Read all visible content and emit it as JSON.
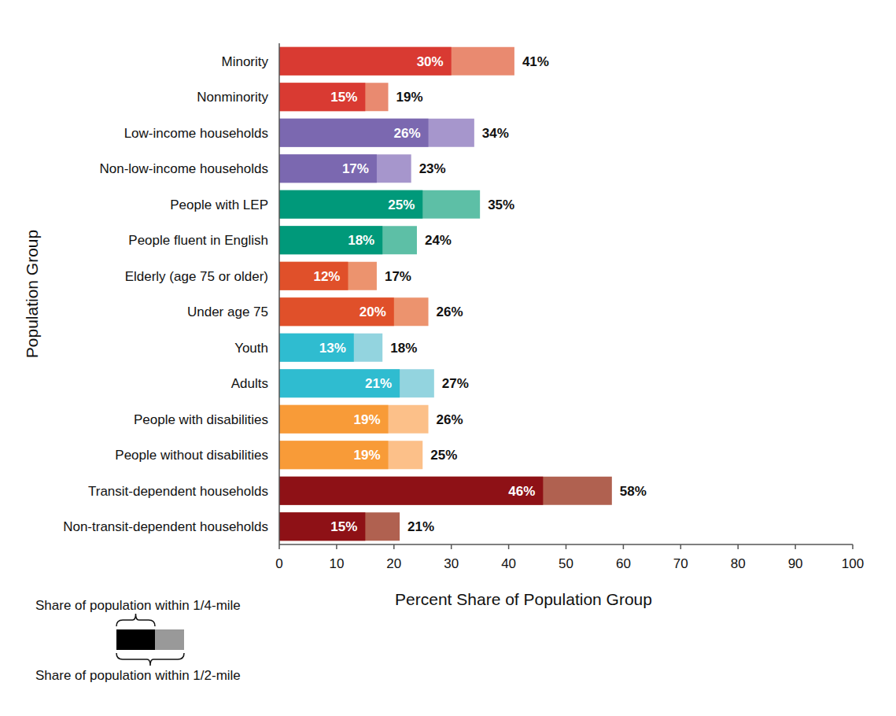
{
  "chart_data": {
    "type": "bar",
    "orientation": "horizontal",
    "stacked": false,
    "data_labels": true,
    "grid": false,
    "legend": "bottom-left",
    "xlabel": "Percent Share of Population Group",
    "ylabel": "Population Group",
    "categories": [
      "Minority",
      "Nonminority",
      "Low-income households",
      "Non-low-income households",
      "People with LEP",
      "People fluent in English",
      "Elderly (age 75 or older)",
      "Under age 75",
      "Youth",
      "Adults",
      "People with disabilities",
      "People without disabilities",
      "Transit-dependent households",
      "Non-transit-dependent households"
    ],
    "xlim": [
      0,
      100
    ],
    "xticks": [
      0,
      10,
      20,
      30,
      40,
      50,
      60,
      70,
      80,
      90,
      100
    ],
    "series": [
      {
        "name": "Share of population within 1/4-mile",
        "color": "#000000",
        "colors": [
          "#d93a32",
          "#d93a32",
          "#7b68b0",
          "#7b68b0",
          "#00997a",
          "#00997a",
          "#e0502a",
          "#e0502a",
          "#2fbcd0",
          "#2fbcd0",
          "#f89b38",
          "#f89b38",
          "#8e1116",
          "#8e1116"
        ],
        "values": [
          30,
          15,
          26,
          17,
          25,
          18,
          12,
          20,
          13,
          21,
          19,
          19,
          46,
          15
        ],
        "value_labels": [
          "30%",
          "15%",
          "26%",
          "17%",
          "25%",
          "18%",
          "12%",
          "20%",
          "13%",
          "21%",
          "19%",
          "19%",
          "46%",
          "15%"
        ]
      },
      {
        "name": "Share of population within 1/2-mile",
        "color": "#999999",
        "colors": [
          "#e98a70",
          "#e98a70",
          "#a696cc",
          "#a696cc",
          "#5dbfa6",
          "#5dbfa6",
          "#ec936e",
          "#ec936e",
          "#93d4df",
          "#93d4df",
          "#fcc089",
          "#fcc089",
          "#b06150",
          "#b06150"
        ],
        "values": [
          41,
          19,
          34,
          23,
          35,
          24,
          17,
          26,
          18,
          27,
          26,
          25,
          58,
          21
        ],
        "value_labels": [
          "41%",
          "19%",
          "34%",
          "23%",
          "35%",
          "24%",
          "17%",
          "26%",
          "18%",
          "27%",
          "26%",
          "25%",
          "58%",
          "21%"
        ]
      }
    ]
  }
}
